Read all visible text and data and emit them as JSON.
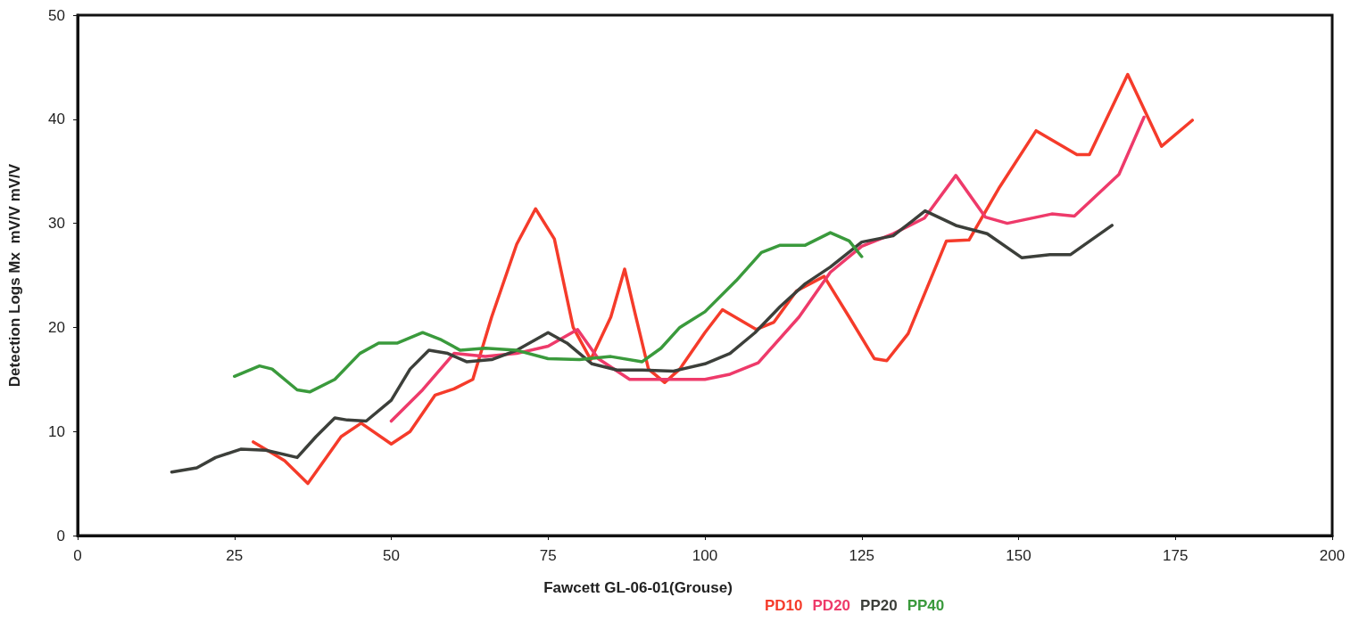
{
  "chart_data": {
    "type": "line",
    "xlabel": "Fawcett GL-06-01(Grouse)",
    "ylabel": "Detection Logs Mx  mV/V mV/V",
    "xlim": [
      0,
      200
    ],
    "xticks": [
      0,
      25,
      50,
      75,
      100,
      125,
      150,
      175,
      200
    ],
    "ylim": [
      0,
      50
    ],
    "yticks": [
      0,
      10,
      20,
      30,
      40,
      50
    ],
    "grid": false,
    "legend": "bottom",
    "marker": "none",
    "line_style": "solid",
    "series": [
      {
        "name": "PD10",
        "color": "#f53b2a",
        "x": [
          28,
          33,
          36.7,
          42,
          45.2,
          50,
          53,
          57,
          60,
          63,
          66,
          70,
          73,
          76,
          79,
          81.8,
          85,
          87.2,
          89,
          91,
          93.6,
          96,
          100,
          102.8,
          108.2,
          111,
          114.6,
          119,
          123,
          127,
          129,
          132.4,
          138.5,
          142.1,
          147,
          152.8,
          159.3,
          161.3,
          167.4,
          172.8,
          177.7
        ],
        "values": [
          9.0,
          7.2,
          5.0,
          9.5,
          10.8,
          8.8,
          10,
          13.5,
          14.1,
          15,
          21,
          28,
          31.4,
          28.5,
          20,
          16.9,
          21,
          25.6,
          21,
          16,
          14.7,
          16,
          19.5,
          21.7,
          19.8,
          20.5,
          23.5,
          24.9,
          21,
          17,
          16.8,
          19.4,
          28.3,
          28.4,
          33.5,
          38.9,
          36.6,
          36.6,
          44.3,
          37.4,
          39.9
        ]
      },
      {
        "name": "PD20",
        "color": "#ee3a6a",
        "x": [
          50,
          55,
          60,
          65,
          70,
          75,
          79.7,
          83,
          88,
          93,
          100,
          104,
          108.5,
          115,
          120,
          125,
          130,
          135,
          140,
          144.7,
          148.2,
          155.3,
          158.9,
          166,
          170
        ],
        "values": [
          11,
          14,
          17.5,
          17.2,
          17.5,
          18.2,
          19.8,
          17,
          15,
          15,
          15,
          15.5,
          16.6,
          21,
          25.3,
          27.8,
          29,
          30.5,
          34.6,
          30.6,
          30.0,
          30.9,
          30.7,
          34.7,
          40.2
        ]
      },
      {
        "name": "PP20",
        "color": "#3c3f3a",
        "x": [
          15,
          19,
          22,
          26,
          30,
          35,
          38,
          41,
          43,
          46,
          50,
          53,
          56,
          59,
          62,
          66,
          70,
          75,
          78,
          82,
          86,
          90,
          95,
          100,
          104,
          108,
          112,
          116,
          120,
          125,
          130,
          133,
          135.1,
          140,
          145,
          150.5,
          155,
          158.3,
          164.9
        ],
        "values": [
          6.1,
          6.5,
          7.5,
          8.3,
          8.2,
          7.5,
          9.5,
          11.3,
          11.1,
          11.0,
          13,
          16,
          17.8,
          17.5,
          16.7,
          16.9,
          17.8,
          19.5,
          18.5,
          16.5,
          15.9,
          15.9,
          15.8,
          16.5,
          17.5,
          19.5,
          22,
          24.2,
          25.8,
          28.2,
          28.8,
          30.2,
          31.2,
          29.8,
          29,
          26.7,
          27,
          27,
          29.8
        ]
      },
      {
        "name": "PP40",
        "color": "#3a9a3c",
        "x": [
          25,
          29,
          31,
          35,
          37,
          41,
          45,
          48,
          51,
          55,
          58,
          61,
          65,
          70,
          75,
          80,
          85,
          90,
          93,
          96,
          100,
          105,
          109,
          112,
          116,
          120,
          123,
          125
        ],
        "values": [
          15.3,
          16.3,
          16,
          14,
          13.8,
          15,
          17.5,
          18.5,
          18.5,
          19.5,
          18.8,
          17.8,
          18,
          17.8,
          17,
          16.9,
          17.2,
          16.7,
          18,
          20,
          21.5,
          24.5,
          27.2,
          27.9,
          27.9,
          29.1,
          28.3,
          26.8
        ]
      }
    ]
  }
}
